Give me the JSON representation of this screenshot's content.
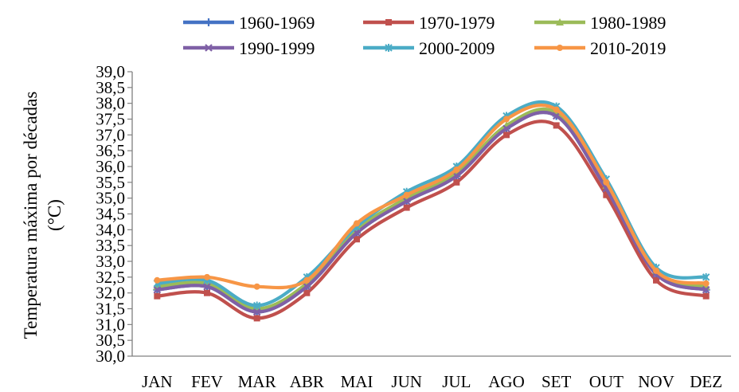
{
  "chart_data": {
    "type": "line",
    "title": "",
    "xlabel": "",
    "ylabel": [
      "Temperatura máxima por décadas",
      "(°C)"
    ],
    "categories": [
      "JAN",
      "FEV",
      "MAR",
      "ABR",
      "MAI",
      "JUN",
      "JUL",
      "AGO",
      "SET",
      "OUT",
      "NOV",
      "DEZ"
    ],
    "ylim": [
      30.0,
      39.0
    ],
    "yticks": [
      "30,0",
      "30,5",
      "31,0",
      "31,5",
      "32,0",
      "32,5",
      "33,0",
      "33,5",
      "34,0",
      "34,5",
      "35,0",
      "35,5",
      "36,0",
      "36,5",
      "37,0",
      "37,5",
      "38,0",
      "38,5",
      "39,0"
    ],
    "grid": false,
    "legend_position": "top",
    "series": [
      {
        "name": "1960-1969",
        "color": "#4472C4",
        "marker": "plus",
        "values": [
          32.1,
          32.2,
          31.4,
          32.2,
          33.9,
          34.9,
          35.7,
          37.2,
          37.6,
          35.3,
          32.6,
          32.1
        ]
      },
      {
        "name": "1970-1979",
        "color": "#C0504D",
        "marker": "square",
        "values": [
          31.9,
          32.0,
          31.2,
          32.0,
          33.7,
          34.7,
          35.5,
          37.0,
          37.3,
          35.1,
          32.4,
          31.9
        ]
      },
      {
        "name": "1980-1989",
        "color": "#9BBB59",
        "marker": "triangle",
        "values": [
          32.2,
          32.3,
          31.5,
          32.3,
          34.0,
          35.0,
          35.8,
          37.3,
          37.7,
          35.4,
          32.7,
          32.2
        ]
      },
      {
        "name": "1990-1999",
        "color": "#7F60A6",
        "marker": "x",
        "values": [
          32.1,
          32.2,
          31.4,
          32.2,
          33.9,
          34.9,
          35.7,
          37.2,
          37.6,
          35.3,
          32.6,
          32.1
        ]
      },
      {
        "name": "2000-2009",
        "color": "#4BACC6",
        "marker": "star",
        "values": [
          32.3,
          32.4,
          31.6,
          32.5,
          34.1,
          35.2,
          36.0,
          37.6,
          37.9,
          35.6,
          32.8,
          32.5
        ]
      },
      {
        "name": "2010-2019",
        "color": "#F79646",
        "marker": "circle",
        "values": [
          32.4,
          32.5,
          32.2,
          32.4,
          34.2,
          35.1,
          35.9,
          37.5,
          37.8,
          35.5,
          32.7,
          32.3
        ]
      }
    ]
  }
}
